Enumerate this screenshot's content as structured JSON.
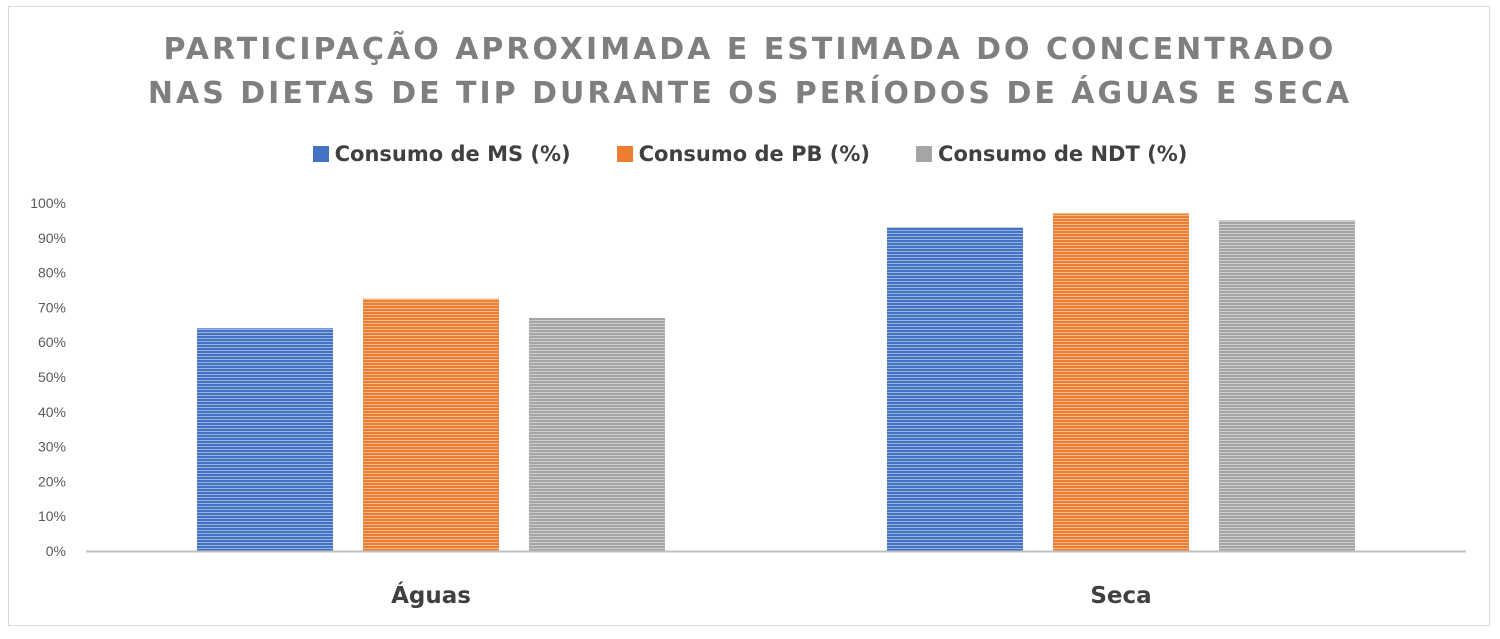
{
  "chart_data": {
    "type": "bar",
    "title_lines": [
      "PARTICIPAÇÃO APROXIMADA E ESTIMADA DO CONCENTRADO",
      "NAS DIETAS DE TIP DURANTE OS PERÍODOS DE ÁGUAS E SECA"
    ],
    "categories": [
      "Águas",
      "Seca"
    ],
    "series": [
      {
        "name": "Consumo de MS (%)",
        "color": "#4472c4",
        "values": [
          64,
          93
        ]
      },
      {
        "name": "Consumo de PB (%)",
        "color": "#ed7d31",
        "values": [
          72.5,
          97
        ]
      },
      {
        "name": "Consumo de NDT (%)",
        "color": "#a5a5a5",
        "values": [
          67,
          95
        ]
      }
    ],
    "yticks": [
      "0%",
      "10%",
      "20%",
      "30%",
      "40%",
      "50%",
      "60%",
      "70%",
      "80%",
      "90%",
      "100%"
    ],
    "ylim": [
      0,
      100
    ],
    "grid": false,
    "legend_position": "top"
  }
}
